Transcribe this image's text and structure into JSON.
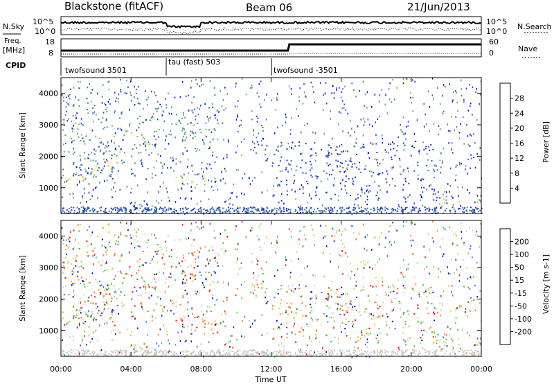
{
  "header": {
    "station": "Blackstone (fitACF)",
    "beam": "Beam 06",
    "date": "21/Jun/2013"
  },
  "left_labels": {
    "nsky": "N.Sky",
    "freq": "Freq.",
    "freq_unit": "[MHz]",
    "cpid": "CPID"
  },
  "right_labels": {
    "nsearch": "N.Search",
    "nave": "Nave"
  },
  "nsky_axis": {
    "ticks": [
      "10^5",
      "10^0"
    ]
  },
  "nsearch_axis": {
    "ticks": [
      "10^5",
      "10^0"
    ]
  },
  "freq_axis": {
    "ticks": [
      "18",
      "8"
    ]
  },
  "nave_axis": {
    "ticks": [
      "60",
      "0"
    ]
  },
  "cpid_segments": [
    {
      "label": "twofsound 3501"
    },
    {
      "label": "tau (fast) 503"
    },
    {
      "label": "twofsound -3501"
    }
  ],
  "chart_data": [
    {
      "type": "heatmap",
      "panel": "power",
      "ylabel": "Slant Range [km]",
      "ylim": [
        180,
        4500
      ],
      "yticks": [
        1000,
        2000,
        3000,
        4000
      ],
      "xlim_hours": [
        0,
        24
      ],
      "colorbar": {
        "label": "Power [dB]",
        "ticks": [
          "28",
          "24",
          "20",
          "16",
          "12",
          "8",
          "4"
        ],
        "colors": [
          "#ff0000",
          "#ff5a00",
          "#ffa000",
          "#ffd000",
          "#c8e632",
          "#78c850",
          "#50a078",
          "#3c78b4",
          "#1e3cc8",
          "#0000ff"
        ]
      },
      "regions": [
        {
          "t": [
            0.0,
            3.4
          ],
          "r": [
            700,
            1400
          ],
          "peak": 26,
          "slope_km_per_h": 300
        },
        {
          "t": [
            0.0,
            6.0
          ],
          "r": [
            1300,
            4200
          ],
          "peak": 14
        },
        {
          "t": [
            6.5,
            9.0
          ],
          "r": [
            900,
            1500
          ],
          "peak": 24
        },
        {
          "t": [
            6.5,
            9.0
          ],
          "r": [
            1600,
            3600
          ],
          "peak": 15
        },
        {
          "t": [
            10.0,
            11.5
          ],
          "r": [
            2300,
            3300
          ],
          "peak": 10
        },
        {
          "t": [
            12.0,
            21.5
          ],
          "r": [
            600,
            2500
          ],
          "peak": 6
        },
        {
          "t": [
            21.5,
            24.0
          ],
          "r": [
            450,
            800
          ],
          "peak": 26
        },
        {
          "t": [
            22.5,
            24.0
          ],
          "r": [
            1600,
            2000
          ],
          "peak": 12
        }
      ]
    },
    {
      "type": "heatmap",
      "panel": "velocity",
      "ylabel": "Slant Range [km]",
      "ylim": [
        180,
        4500
      ],
      "yticks": [
        1000,
        2000,
        3000,
        4000
      ],
      "xlim_hours": [
        0,
        24
      ],
      "xlabel": "Time UT",
      "xticks": [
        "00:00",
        "04:00",
        "08:00",
        "12:00",
        "16:00",
        "20:00",
        "00:00"
      ],
      "colorbar": {
        "label": "Velocity [m s-1]",
        "ticks": [
          "200",
          "100",
          "50",
          "15",
          "-15",
          "-50",
          "-100",
          "-200"
        ],
        "colors": [
          "#0000c8",
          "#3264ff",
          "#32c832",
          "#a0e650",
          "#c8c8c8",
          "#ffa000",
          "#ff6400",
          "#ff0000"
        ]
      }
    }
  ]
}
